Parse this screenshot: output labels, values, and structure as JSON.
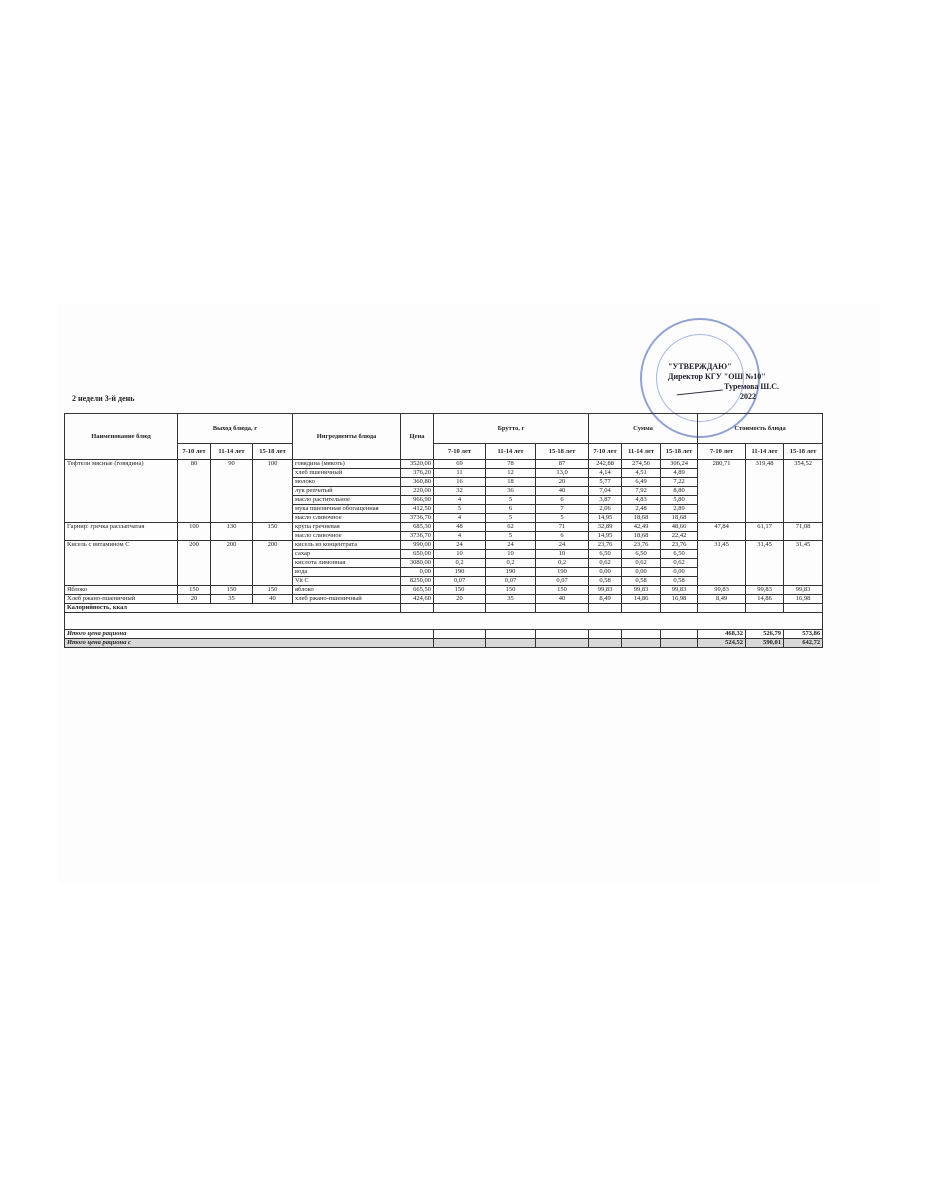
{
  "day_label": "2 недели 3-й день",
  "approval": {
    "line1": "\"УТВЕРЖДАЮ\"",
    "line2": "Директор КГУ \"ОШ №10\"",
    "line3": "Туремова Ш.С.",
    "line4": "2022"
  },
  "headers": {
    "dish": "Наименование блюд",
    "yield": "Выход блюда, г",
    "ingredients": "Ингредиенты блюда",
    "price": "Цена",
    "brutto": "Брутто, г",
    "sum": "Сумма",
    "cost": "Стоимость блюда",
    "ages": [
      "7-10 лет",
      "11-14 лет",
      "15-18 лет"
    ]
  },
  "dishes": [
    {
      "name": "Тефтели мясные (говядина)",
      "yield": [
        "80",
        "90",
        "100"
      ],
      "cost": [
        "280,71",
        "319,48",
        "354,52"
      ],
      "ingredients": [
        {
          "name": "говядина (мякоть)",
          "price": "3520,00",
          "brutto": [
            "69",
            "78",
            "87"
          ],
          "sum": [
            "242,88",
            "274,56",
            "306,24"
          ]
        },
        {
          "name": "хлеб пшеничный",
          "price": "376,20",
          "brutto": [
            "11",
            "12",
            "13,0"
          ],
          "sum": [
            "4,14",
            "4,51",
            "4,89"
          ]
        },
        {
          "name": "молоко",
          "price": "360,80",
          "brutto": [
            "16",
            "18",
            "20"
          ],
          "sum": [
            "5,77",
            "6,49",
            "7,22"
          ]
        },
        {
          "name": "лук репчатый",
          "price": "220,00",
          "brutto": [
            "32",
            "36",
            "40"
          ],
          "sum": [
            "7,04",
            "7,92",
            "8,80"
          ]
        },
        {
          "name": "масло растительное",
          "price": "966,90",
          "brutto": [
            "4",
            "5",
            "6"
          ],
          "sum": [
            "3,87",
            "4,83",
            "5,80"
          ]
        },
        {
          "name": "мука пшеничная обогащенная",
          "price": "412,50",
          "brutto": [
            "5",
            "6",
            "7"
          ],
          "sum": [
            "2,06",
            "2,48",
            "2,89"
          ]
        },
        {
          "name": "масло сливочное",
          "price": "3736,70",
          "brutto": [
            "4",
            "5",
            "5"
          ],
          "sum": [
            "14,95",
            "18,68",
            "18,68"
          ]
        }
      ]
    },
    {
      "name": "Гарнир: гречка рассыпчатая",
      "yield": [
        "100",
        "130",
        "150"
      ],
      "cost": [
        "47,84",
        "61,17",
        "71,08"
      ],
      "ingredients": [
        {
          "name": "крупа гречневая",
          "price": "685,30",
          "brutto": [
            "48",
            "62",
            "71"
          ],
          "sum": [
            "32,89",
            "42,49",
            "48,66"
          ]
        },
        {
          "name": "масло сливочное",
          "price": "3736,70",
          "brutto": [
            "4",
            "5",
            "6"
          ],
          "sum": [
            "14,95",
            "18,68",
            "22,42"
          ]
        }
      ]
    },
    {
      "name": "Кисель с витамином С",
      "yield": [
        "200",
        "200",
        "200"
      ],
      "cost": [
        "31,45",
        "31,45",
        "31,45"
      ],
      "ingredients": [
        {
          "name": "кисель из концентрата",
          "price": "990,00",
          "brutto": [
            "24",
            "24",
            "24"
          ],
          "sum": [
            "23,76",
            "23,76",
            "23,76"
          ]
        },
        {
          "name": "сахар",
          "price": "650,00",
          "brutto": [
            "10",
            "10",
            "10"
          ],
          "sum": [
            "6,50",
            "6,50",
            "6,50"
          ]
        },
        {
          "name": "кислота лимонная",
          "price": "3080,00",
          "brutto": [
            "0,2",
            "0,2",
            "0,2"
          ],
          "sum": [
            "0,62",
            "0,62",
            "0,62"
          ]
        },
        {
          "name": "вода",
          "price": "0,00",
          "brutto": [
            "190",
            "190",
            "190"
          ],
          "sum": [
            "0,00",
            "0,00",
            "0,00"
          ]
        },
        {
          "name": "Vit C",
          "price": "8250,00",
          "brutto": [
            "0,07",
            "0,07",
            "0,07"
          ],
          "sum": [
            "0,58",
            "0,58",
            "0,58"
          ]
        }
      ]
    },
    {
      "name": "Яблоко",
      "yield": [
        "150",
        "150",
        "150"
      ],
      "cost": [
        "99,83",
        "99,83",
        "99,83"
      ],
      "ingredients": [
        {
          "name": "яблоко",
          "price": "665,50",
          "brutto": [
            "150",
            "150",
            "150"
          ],
          "sum": [
            "99,83",
            "99,83",
            "99,83"
          ]
        }
      ]
    },
    {
      "name": "Хлеб ржано-пшеничный",
      "yield": [
        "20",
        "35",
        "40"
      ],
      "cost": [
        "8,49",
        "14,86",
        "16,98"
      ],
      "ingredients": [
        {
          "name": "хлеб ржано-пшеничный",
          "price": "424,60",
          "brutto": [
            "20",
            "35",
            "40"
          ],
          "sum": [
            "8,49",
            "14,86",
            "16,98"
          ]
        }
      ]
    }
  ],
  "calories_label": "Калорийность, ккал",
  "total": {
    "label": "Итого цена рациона",
    "values": [
      "468,32",
      "526,79",
      "573,86"
    ]
  },
  "total_c": {
    "label": "Итого цена рациона с",
    "values": [
      "524,52",
      "590,01",
      "642,72"
    ]
  }
}
